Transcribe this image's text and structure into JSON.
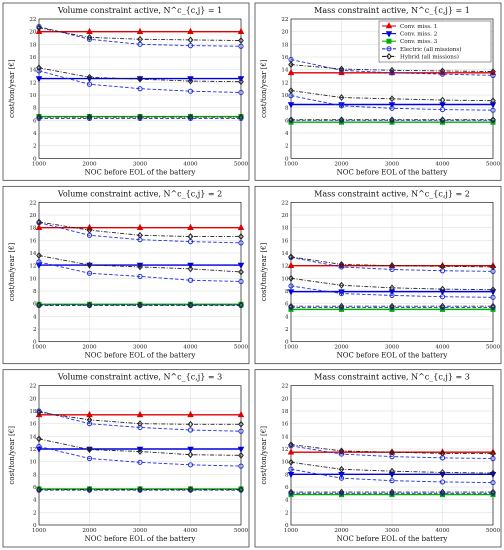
{
  "chart_data": [
    {
      "type": "line",
      "title": "Volume constraint active, N^c_{c,j} = 1",
      "xlabel": "NOC before EOL of the battery",
      "ylabel": "cost/ton/year [€]",
      "x": [
        1000,
        2000,
        3000,
        4000,
        5000
      ],
      "xlim": [
        1000,
        5000
      ],
      "ylim": [
        0,
        22
      ],
      "grid": true,
      "series": [
        {
          "name": "Conv. miss. 1",
          "color": "#e00000",
          "marker": "triangle-up",
          "style": "solid",
          "values": [
            20.0,
            20.0,
            20.0,
            20.0,
            20.0
          ]
        },
        {
          "name": "Conv. miss. 2",
          "color": "#0000e0",
          "marker": "triangle-down",
          "style": "solid",
          "values": [
            12.6,
            12.6,
            12.6,
            12.6,
            12.6
          ]
        },
        {
          "name": "Conv. miss. 3",
          "color": "#00b000",
          "marker": "square",
          "style": "solid",
          "values": [
            6.6,
            6.6,
            6.6,
            6.6,
            6.6
          ]
        },
        {
          "name": "Electric (all missions)",
          "color": "#2030e0",
          "marker": "circle",
          "style": "dashed",
          "values": [
            20.8,
            18.8,
            18.0,
            17.8,
            17.7
          ]
        },
        {
          "name": "Electric (all missions)",
          "color": "#2030e0",
          "marker": "circle",
          "style": "dashed",
          "values": [
            13.8,
            11.7,
            11.0,
            10.6,
            10.4
          ]
        },
        {
          "name": "Electric (all missions)",
          "color": "#2030e0",
          "marker": "circle",
          "style": "dashed",
          "values": [
            6.3,
            6.3,
            6.3,
            6.3,
            6.3
          ]
        },
        {
          "name": "Hybrid (all missions)",
          "color": "#222222",
          "marker": "diamond",
          "style": "dashdot",
          "values": [
            20.6,
            19.1,
            18.8,
            18.7,
            18.6
          ]
        },
        {
          "name": "Hybrid (all missions)",
          "color": "#222222",
          "marker": "diamond",
          "style": "dashdot",
          "values": [
            14.3,
            12.8,
            12.5,
            12.2,
            12.1
          ]
        },
        {
          "name": "Hybrid (all missions)",
          "color": "#222222",
          "marker": "diamond",
          "style": "dashdot",
          "values": [
            6.5,
            6.5,
            6.5,
            6.5,
            6.5
          ]
        }
      ]
    },
    {
      "type": "line",
      "title": "Mass constraint active, N^c_{c,j} = 1",
      "xlabel": "NOC before EOL of the battery",
      "ylabel": "cost/ton/year [€]",
      "x": [
        1000,
        2000,
        3000,
        4000,
        5000
      ],
      "xlim": [
        1000,
        5000
      ],
      "ylim": [
        0,
        22
      ],
      "grid": true,
      "legend": "top-right",
      "series": [
        {
          "name": "Conv. miss. 1",
          "color": "#e00000",
          "marker": "triangle-up",
          "style": "solid",
          "values": [
            13.5,
            13.5,
            13.5,
            13.5,
            13.5
          ]
        },
        {
          "name": "Conv. miss. 2",
          "color": "#0000e0",
          "marker": "triangle-down",
          "style": "solid",
          "values": [
            8.5,
            8.5,
            8.5,
            8.5,
            8.5
          ]
        },
        {
          "name": "Conv. miss. 3",
          "color": "#00b000",
          "marker": "square",
          "style": "solid",
          "values": [
            5.7,
            5.7,
            5.7,
            5.7,
            5.7
          ]
        },
        {
          "name": "Electric (all missions)",
          "color": "#2030e0",
          "marker": "circle",
          "style": "dashed",
          "values": [
            15.6,
            13.9,
            13.5,
            13.3,
            13.1
          ]
        },
        {
          "name": "Electric (all missions)",
          "color": "#2030e0",
          "marker": "circle",
          "style": "dashed",
          "values": [
            9.9,
            8.3,
            7.9,
            7.7,
            7.6
          ]
        },
        {
          "name": "Electric (all missions)",
          "color": "#2030e0",
          "marker": "circle",
          "style": "dashed",
          "values": [
            6.0,
            6.0,
            6.0,
            6.0,
            6.0
          ]
        },
        {
          "name": "Hybrid (all missions)",
          "color": "#222222",
          "marker": "diamond",
          "style": "dashdot",
          "values": [
            14.8,
            14.1,
            13.9,
            13.8,
            13.7
          ]
        },
        {
          "name": "Hybrid (all missions)",
          "color": "#222222",
          "marker": "diamond",
          "style": "dashdot",
          "values": [
            10.7,
            9.6,
            9.4,
            9.2,
            9.1
          ]
        },
        {
          "name": "Hybrid (all missions)",
          "color": "#222222",
          "marker": "diamond",
          "style": "dashdot",
          "values": [
            6.1,
            6.1,
            6.1,
            6.1,
            6.1
          ]
        }
      ]
    },
    {
      "type": "line",
      "title": "Volume constraint active, N^c_{c,j} = 2",
      "xlabel": "NOC before EOL of the battery",
      "ylabel": "cost/ton/year [€]",
      "x": [
        1000,
        2000,
        3000,
        4000,
        5000
      ],
      "xlim": [
        1000,
        5000
      ],
      "ylim": [
        0,
        22
      ],
      "grid": true,
      "series": [
        {
          "name": "Conv. miss. 1",
          "color": "#e00000",
          "marker": "triangle-up",
          "style": "solid",
          "values": [
            18.0,
            18.0,
            18.0,
            18.0,
            18.0
          ]
        },
        {
          "name": "Conv. miss. 2",
          "color": "#0000e0",
          "marker": "triangle-down",
          "style": "solid",
          "values": [
            12.1,
            12.1,
            12.1,
            12.1,
            12.1
          ]
        },
        {
          "name": "Conv. miss. 3",
          "color": "#00b000",
          "marker": "square",
          "style": "solid",
          "values": [
            5.9,
            5.9,
            5.9,
            5.9,
            5.9
          ]
        },
        {
          "name": "Electric (all missions)",
          "color": "#2030e0",
          "marker": "circle",
          "style": "dashed",
          "values": [
            18.8,
            16.8,
            16.1,
            15.8,
            15.6
          ]
        },
        {
          "name": "Electric (all missions)",
          "color": "#2030e0",
          "marker": "circle",
          "style": "dashed",
          "values": [
            12.6,
            10.8,
            10.3,
            9.7,
            9.5
          ]
        },
        {
          "name": "Electric (all missions)",
          "color": "#2030e0",
          "marker": "circle",
          "style": "dashed",
          "values": [
            5.7,
            5.7,
            5.7,
            5.7,
            5.7
          ]
        },
        {
          "name": "Hybrid (all missions)",
          "color": "#222222",
          "marker": "diamond",
          "style": "dashdot",
          "values": [
            18.9,
            17.6,
            16.8,
            16.6,
            16.6
          ]
        },
        {
          "name": "Hybrid (all missions)",
          "color": "#222222",
          "marker": "diamond",
          "style": "dashdot",
          "values": [
            13.6,
            12.1,
            11.8,
            11.5,
            11.0
          ]
        },
        {
          "name": "Hybrid (all missions)",
          "color": "#222222",
          "marker": "diamond",
          "style": "dashdot",
          "values": [
            5.8,
            5.8,
            5.8,
            5.8,
            5.8
          ]
        }
      ]
    },
    {
      "type": "line",
      "title": "Mass constraint active, N^c_{c,j} = 2",
      "xlabel": "NOC before EOL of the battery",
      "ylabel": "cost/ton/year [€]",
      "x": [
        1000,
        2000,
        3000,
        4000,
        5000
      ],
      "xlim": [
        1000,
        5000
      ],
      "ylim": [
        0,
        22
      ],
      "grid": true,
      "series": [
        {
          "name": "Conv. miss. 1",
          "color": "#e00000",
          "marker": "triangle-up",
          "style": "solid",
          "values": [
            12.0,
            12.0,
            12.0,
            12.0,
            12.0
          ]
        },
        {
          "name": "Conv. miss. 2",
          "color": "#0000e0",
          "marker": "triangle-down",
          "style": "solid",
          "values": [
            7.9,
            7.9,
            7.9,
            7.9,
            7.9
          ]
        },
        {
          "name": "Conv. miss. 3",
          "color": "#00b000",
          "marker": "square",
          "style": "solid",
          "values": [
            5.1,
            5.1,
            5.1,
            5.1,
            5.1
          ]
        },
        {
          "name": "Electric (all missions)",
          "color": "#2030e0",
          "marker": "circle",
          "style": "dashed",
          "values": [
            13.3,
            11.8,
            11.4,
            11.2,
            11.1
          ]
        },
        {
          "name": "Electric (all missions)",
          "color": "#2030e0",
          "marker": "circle",
          "style": "dashed",
          "values": [
            8.8,
            7.6,
            7.3,
            7.1,
            7.0
          ]
        },
        {
          "name": "Electric (all missions)",
          "color": "#2030e0",
          "marker": "circle",
          "style": "dashed",
          "values": [
            5.4,
            5.4,
            5.4,
            5.4,
            5.4
          ]
        },
        {
          "name": "Hybrid (all missions)",
          "color": "#222222",
          "marker": "diamond",
          "style": "dashdot",
          "values": [
            13.4,
            12.2,
            12.0,
            11.9,
            11.8
          ]
        },
        {
          "name": "Hybrid (all missions)",
          "color": "#222222",
          "marker": "diamond",
          "style": "dashdot",
          "values": [
            10.0,
            8.9,
            8.5,
            8.3,
            8.2
          ]
        },
        {
          "name": "Hybrid (all missions)",
          "color": "#222222",
          "marker": "diamond",
          "style": "dashdot",
          "values": [
            5.6,
            5.6,
            5.6,
            5.6,
            5.6
          ]
        }
      ]
    },
    {
      "type": "line",
      "title": "Volume constraint active, N^c_{c,j} = 3",
      "xlabel": "NOC before EOL of the battery",
      "ylabel": "cost/ton/year [€]",
      "x": [
        1000,
        2000,
        3000,
        4000,
        5000
      ],
      "xlim": [
        1000,
        5000
      ],
      "ylim": [
        0,
        22
      ],
      "grid": true,
      "series": [
        {
          "name": "Conv. miss. 1",
          "color": "#e00000",
          "marker": "triangle-up",
          "style": "solid",
          "values": [
            17.4,
            17.4,
            17.4,
            17.4,
            17.4
          ]
        },
        {
          "name": "Conv. miss. 2",
          "color": "#0000e0",
          "marker": "triangle-down",
          "style": "solid",
          "values": [
            12.0,
            12.0,
            12.0,
            12.0,
            12.0
          ]
        },
        {
          "name": "Conv. miss. 3",
          "color": "#00b000",
          "marker": "square",
          "style": "solid",
          "values": [
            5.7,
            5.7,
            5.7,
            5.7,
            5.7
          ]
        },
        {
          "name": "Electric (all missions)",
          "color": "#2030e0",
          "marker": "circle",
          "style": "dashed",
          "values": [
            18.0,
            16.0,
            15.4,
            15.0,
            14.8
          ]
        },
        {
          "name": "Electric (all missions)",
          "color": "#2030e0",
          "marker": "circle",
          "style": "dashed",
          "values": [
            12.4,
            10.5,
            9.9,
            9.5,
            9.3
          ]
        },
        {
          "name": "Electric (all missions)",
          "color": "#2030e0",
          "marker": "circle",
          "style": "dashed",
          "values": [
            5.5,
            5.5,
            5.5,
            5.5,
            5.5
          ]
        },
        {
          "name": "Hybrid (all missions)",
          "color": "#222222",
          "marker": "diamond",
          "style": "dashdot",
          "values": [
            17.8,
            16.6,
            16.0,
            15.9,
            15.9
          ]
        },
        {
          "name": "Hybrid (all missions)",
          "color": "#222222",
          "marker": "diamond",
          "style": "dashdot",
          "values": [
            13.6,
            11.9,
            11.6,
            11.1,
            11.0
          ]
        },
        {
          "name": "Hybrid (all missions)",
          "color": "#222222",
          "marker": "diamond",
          "style": "dashdot",
          "values": [
            5.6,
            5.6,
            5.6,
            5.6,
            5.6
          ]
        }
      ]
    },
    {
      "type": "line",
      "title": "Mass constraint active, N^c_{c,j} = 3",
      "xlabel": "NOC before EOL of the battery",
      "ylabel": "cost/ton/year [€]",
      "x": [
        1000,
        2000,
        3000,
        4000,
        5000
      ],
      "xlim": [
        1000,
        5000
      ],
      "ylim": [
        0,
        22
      ],
      "grid": true,
      "series": [
        {
          "name": "Conv. miss. 1",
          "color": "#e00000",
          "marker": "triangle-up",
          "style": "solid",
          "values": [
            11.5,
            11.5,
            11.5,
            11.5,
            11.5
          ]
        },
        {
          "name": "Conv. miss. 2",
          "color": "#0000e0",
          "marker": "triangle-down",
          "style": "solid",
          "values": [
            8.0,
            8.0,
            8.0,
            8.0,
            8.0
          ]
        },
        {
          "name": "Conv. miss. 3",
          "color": "#00b000",
          "marker": "square",
          "style": "solid",
          "values": [
            4.8,
            4.8,
            4.8,
            4.8,
            4.8
          ]
        },
        {
          "name": "Electric (all missions)",
          "color": "#2030e0",
          "marker": "circle",
          "style": "dashed",
          "values": [
            12.5,
            11.2,
            10.8,
            10.6,
            10.5
          ]
        },
        {
          "name": "Electric (all missions)",
          "color": "#2030e0",
          "marker": "circle",
          "style": "dashed",
          "values": [
            8.8,
            7.4,
            7.0,
            6.8,
            6.7
          ]
        },
        {
          "name": "Electric (all missions)",
          "color": "#2030e0",
          "marker": "circle",
          "style": "dashed",
          "values": [
            5.0,
            5.0,
            5.0,
            5.0,
            5.0
          ]
        },
        {
          "name": "Hybrid (all missions)",
          "color": "#222222",
          "marker": "diamond",
          "style": "dashdot",
          "values": [
            12.7,
            11.7,
            11.5,
            11.3,
            11.3
          ]
        },
        {
          "name": "Hybrid (all missions)",
          "color": "#222222",
          "marker": "diamond",
          "style": "dashdot",
          "values": [
            9.9,
            8.8,
            8.5,
            8.3,
            8.2
          ]
        },
        {
          "name": "Hybrid (all missions)",
          "color": "#222222",
          "marker": "diamond",
          "style": "dashdot",
          "values": [
            5.2,
            5.2,
            5.2,
            5.2,
            5.2
          ]
        }
      ]
    }
  ],
  "legend": {
    "items": [
      {
        "label": "Conv. miss. 1",
        "color": "#e00000",
        "marker": "triangle-up",
        "style": "solid"
      },
      {
        "label": "Conv. miss. 2",
        "color": "#0000e0",
        "marker": "triangle-down",
        "style": "solid"
      },
      {
        "label": "Conv. miss. 3",
        "color": "#00b000",
        "marker": "square",
        "style": "solid"
      },
      {
        "label": "Electric (all missions)",
        "color": "#2030e0",
        "marker": "circle",
        "style": "dashed"
      },
      {
        "label": "Hybrid (all missions)",
        "color": "#222222",
        "marker": "diamond",
        "style": "dashdot"
      }
    ]
  }
}
